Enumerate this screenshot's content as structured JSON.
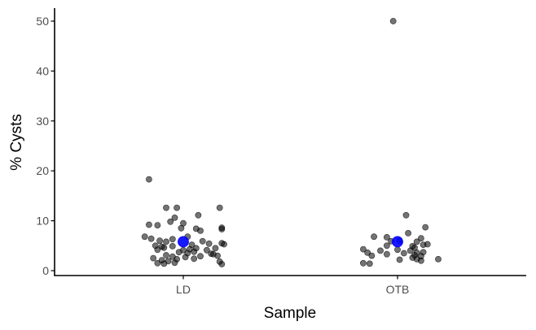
{
  "chart_data": {
    "type": "scatter",
    "xlabel": "Sample",
    "ylabel": "% Cysts",
    "categories": [
      "LD",
      "OTB"
    ],
    "yticks": [
      0,
      10,
      20,
      30,
      40,
      50
    ],
    "ylim": [
      -1,
      52.5
    ],
    "grid": false,
    "legend": "none",
    "point_color": "#000000",
    "mean_color": "#0000ff",
    "series": [
      {
        "category": "LD",
        "mean": 5.8,
        "points": [
          {
            "dx": -0.16,
            "y": 18.3
          },
          {
            "dx": -0.08,
            "y": 12.6
          },
          {
            "dx": -0.03,
            "y": 12.6
          },
          {
            "dx": 0.17,
            "y": 12.6
          },
          {
            "dx": -0.16,
            "y": 9.2
          },
          {
            "dx": -0.12,
            "y": 9.1
          },
          {
            "dx": -0.06,
            "y": 9.8
          },
          {
            "dx": -0.04,
            "y": 10.6
          },
          {
            "dx": 0.0,
            "y": 9.5
          },
          {
            "dx": 0.07,
            "y": 11.1
          },
          {
            "dx": -0.01,
            "y": 8.5
          },
          {
            "dx": 0.06,
            "y": 8.4
          },
          {
            "dx": 0.08,
            "y": 8.0
          },
          {
            "dx": 0.18,
            "y": 8.6
          },
          {
            "dx": 0.18,
            "y": 8.3
          },
          {
            "dx": -0.18,
            "y": 6.8
          },
          {
            "dx": -0.15,
            "y": 6.4
          },
          {
            "dx": -0.11,
            "y": 6.0
          },
          {
            "dx": -0.08,
            "y": 5.8
          },
          {
            "dx": -0.05,
            "y": 6.3
          },
          {
            "dx": 0.02,
            "y": 6.8
          },
          {
            "dx": 0.09,
            "y": 5.9
          },
          {
            "dx": -0.13,
            "y": 5.0
          },
          {
            "dx": -0.1,
            "y": 4.8
          },
          {
            "dx": -0.05,
            "y": 4.9
          },
          {
            "dx": 0.04,
            "y": 5.2
          },
          {
            "dx": 0.12,
            "y": 5.4
          },
          {
            "dx": 0.18,
            "y": 5.5
          },
          {
            "dx": 0.19,
            "y": 5.3
          },
          {
            "dx": -0.12,
            "y": 4.2
          },
          {
            "dx": -0.09,
            "y": 4.6
          },
          {
            "dx": 0.0,
            "y": 4.1
          },
          {
            "dx": 0.03,
            "y": 4.3
          },
          {
            "dx": 0.06,
            "y": 4.5
          },
          {
            "dx": 0.11,
            "y": 4.1
          },
          {
            "dx": 0.15,
            "y": 4.5
          },
          {
            "dx": -0.02,
            "y": 3.7
          },
          {
            "dx": 0.02,
            "y": 3.5
          },
          {
            "dx": 0.05,
            "y": 3.8
          },
          {
            "dx": 0.13,
            "y": 3.4
          },
          {
            "dx": 0.16,
            "y": 3.0
          },
          {
            "dx": -0.08,
            "y": 3.1
          },
          {
            "dx": -0.05,
            "y": 2.8
          },
          {
            "dx": 0.08,
            "y": 2.9
          },
          {
            "dx": 0.14,
            "y": 3.3
          },
          {
            "dx": -0.14,
            "y": 2.5
          },
          {
            "dx": -0.1,
            "y": 2.1
          },
          {
            "dx": -0.07,
            "y": 1.9
          },
          {
            "dx": -0.03,
            "y": 2.3
          },
          {
            "dx": 0.01,
            "y": 2.7
          },
          {
            "dx": 0.05,
            "y": 2.4
          },
          {
            "dx": 0.17,
            "y": 1.8
          },
          {
            "dx": -0.12,
            "y": 1.5
          },
          {
            "dx": -0.09,
            "y": 1.4
          },
          {
            "dx": -0.04,
            "y": 1.6
          },
          {
            "dx": 0.18,
            "y": 1.3
          }
        ]
      },
      {
        "category": "OTB",
        "mean": 5.8,
        "points": [
          {
            "dx": -0.02,
            "y": 50.0
          },
          {
            "dx": 0.04,
            "y": 11.1
          },
          {
            "dx": 0.13,
            "y": 8.7
          },
          {
            "dx": 0.05,
            "y": 7.5
          },
          {
            "dx": -0.11,
            "y": 6.8
          },
          {
            "dx": -0.05,
            "y": 6.7
          },
          {
            "dx": 0.11,
            "y": 6.5
          },
          {
            "dx": -0.03,
            "y": 5.9
          },
          {
            "dx": 0.01,
            "y": 6.0
          },
          {
            "dx": 0.09,
            "y": 5.8
          },
          {
            "dx": 0.12,
            "y": 5.2
          },
          {
            "dx": 0.14,
            "y": 5.3
          },
          {
            "dx": -0.05,
            "y": 5.0
          },
          {
            "dx": 0.07,
            "y": 4.9
          },
          {
            "dx": 0.08,
            "y": 4.6
          },
          {
            "dx": -0.16,
            "y": 4.3
          },
          {
            "dx": -0.08,
            "y": 4.0
          },
          {
            "dx": 0.0,
            "y": 4.2
          },
          {
            "dx": 0.06,
            "y": 4.0
          },
          {
            "dx": -0.14,
            "y": 3.6
          },
          {
            "dx": -0.05,
            "y": 3.3
          },
          {
            "dx": 0.03,
            "y": 3.5
          },
          {
            "dx": 0.09,
            "y": 3.6
          },
          {
            "dx": 0.12,
            "y": 3.7
          },
          {
            "dx": -0.12,
            "y": 3.0
          },
          {
            "dx": 0.08,
            "y": 3.1
          },
          {
            "dx": 0.11,
            "y": 2.9
          },
          {
            "dx": 0.07,
            "y": 2.6
          },
          {
            "dx": 0.09,
            "y": 2.3
          },
          {
            "dx": 0.19,
            "y": 2.3
          },
          {
            "dx": 0.11,
            "y": 2.0
          },
          {
            "dx": 0.01,
            "y": 2.2
          },
          {
            "dx": -0.16,
            "y": 1.5
          },
          {
            "dx": -0.13,
            "y": 1.4
          }
        ]
      }
    ]
  }
}
